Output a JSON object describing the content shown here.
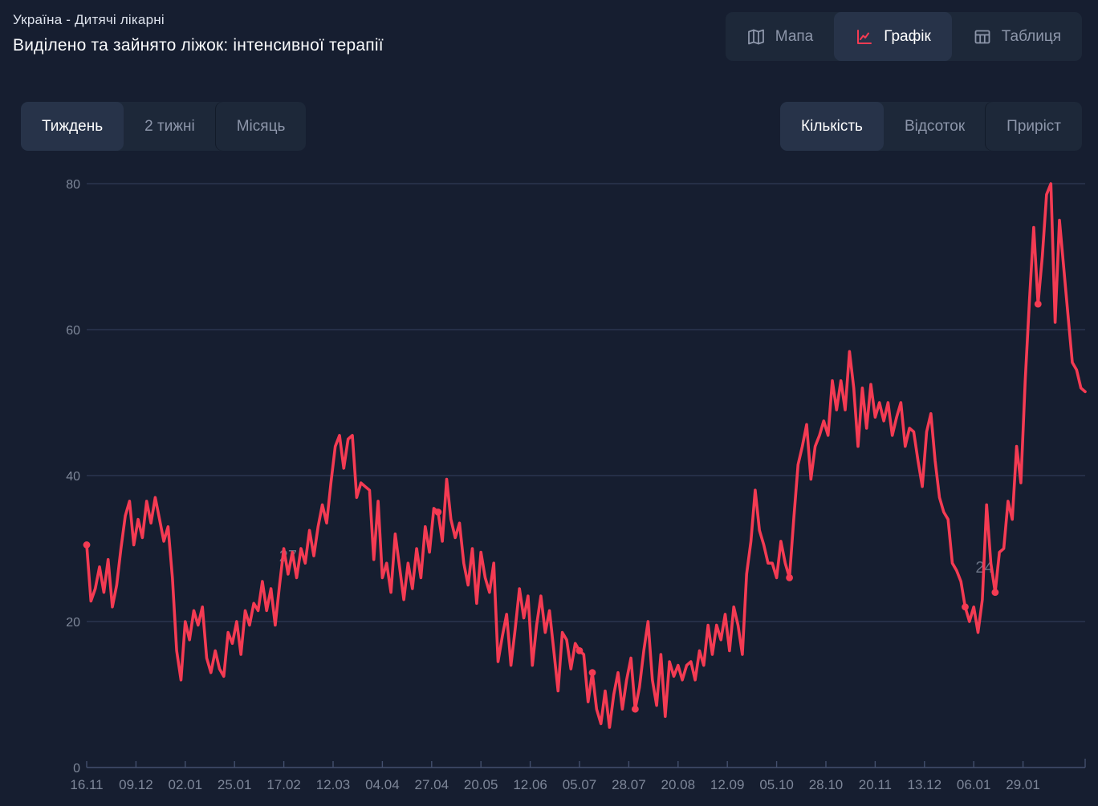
{
  "header": {
    "subtitle": "Україна - Дитячі лікарні",
    "title": "Виділено та зайнято ліжок: інтенсивної терапії"
  },
  "view_switcher": {
    "items": [
      {
        "label": "Мапа",
        "icon": "map-icon",
        "selected": false
      },
      {
        "label": "Графік",
        "icon": "line-chart-icon",
        "selected": true
      },
      {
        "label": "Таблиця",
        "icon": "table-icon",
        "selected": false
      }
    ]
  },
  "period_switcher": {
    "items": [
      {
        "label": "Тиждень",
        "selected": true
      },
      {
        "label": "2 тижні",
        "selected": false
      },
      {
        "label": "Місяць",
        "selected": false
      }
    ]
  },
  "metric_switcher": {
    "items": [
      {
        "label": "Кількість",
        "selected": true
      },
      {
        "label": "Відсоток",
        "selected": false
      },
      {
        "label": "Приріст",
        "selected": false
      }
    ]
  },
  "colors": {
    "background": "#161e30",
    "panel": "#1d2839",
    "panel_selected": "#273349",
    "text_primary": "#ffffff",
    "text_muted": "#8d96aa",
    "accent_red": "#f43b53",
    "grid_line": "#2f3a55",
    "axis_line": "#434f6d",
    "tick_label": "#7e8799"
  },
  "chart_data": {
    "type": "line",
    "title": "Виділено та зайнято ліжок: інтенсивної терапії",
    "legend": "none",
    "grid": "horizontal",
    "ylim": [
      0,
      80
    ],
    "y_ticks": [
      0,
      20,
      40,
      60,
      80
    ],
    "x_tick_labels": [
      "16.11",
      "09.12",
      "02.01",
      "25.01",
      "17.02",
      "12.03",
      "04.04",
      "27.04",
      "20.05",
      "12.06",
      "05.07",
      "28.07",
      "20.08",
      "12.09",
      "05.10",
      "28.10",
      "20.11",
      "13.12",
      "06.01",
      "29.01"
    ],
    "x_tick_day_step": 23,
    "sample_day_step": 2,
    "series": [
      {
        "name": "Виділено та зайнято ліжок: інтенсивної терапії",
        "color": "#f43b53",
        "values": [
          30.5,
          22.8,
          24.5,
          27.5,
          24,
          28.5,
          22,
          25,
          30,
          34.5,
          36.5,
          30.5,
          34,
          31.5,
          36.5,
          33.5,
          37,
          34,
          31,
          33,
          26,
          16,
          12,
          20,
          17.5,
          21.5,
          19.5,
          22,
          15,
          13,
          16,
          13.5,
          12.5,
          18.5,
          17,
          20,
          15.5,
          21.5,
          19.5,
          22.5,
          21.5,
          25.5,
          21.5,
          24.5,
          19.5,
          25,
          30,
          26.5,
          29.5,
          26,
          30,
          28,
          32.5,
          29,
          33,
          36,
          33.5,
          39,
          44,
          45.5,
          41,
          45,
          45.5,
          37,
          39,
          38.5,
          38,
          28.5,
          36.5,
          26,
          28,
          24,
          32,
          27.5,
          23,
          28,
          24.5,
          30,
          26,
          33,
          29.5,
          35.5,
          35,
          31,
          39.5,
          34,
          31.5,
          33.5,
          28,
          25,
          30,
          22.5,
          29.5,
          26,
          24,
          28,
          14.5,
          18,
          21,
          14,
          19,
          24.5,
          20.5,
          23.5,
          14,
          19.5,
          23.5,
          18.5,
          21.5,
          16,
          10.5,
          18.5,
          17.5,
          13.5,
          17,
          16,
          15.5,
          9,
          13,
          8,
          6,
          10.5,
          5.5,
          10,
          13,
          8,
          12,
          15,
          8,
          11,
          16,
          20,
          12,
          8.5,
          15.5,
          7,
          14.5,
          12.5,
          14,
          12,
          14,
          14.5,
          12,
          16,
          14,
          19.5,
          15.5,
          19.5,
          17.5,
          21,
          16,
          22,
          19.5,
          15.5,
          26.5,
          31,
          38,
          32.5,
          30.5,
          28,
          28,
          26,
          31,
          28,
          26,
          34,
          41.5,
          44,
          47,
          39.5,
          44,
          45.5,
          47.5,
          45.5,
          53,
          49,
          53,
          49,
          57,
          52,
          44,
          52,
          46.5,
          52.5,
          48,
          50,
          47.5,
          50,
          45.5,
          48,
          50,
          44,
          46.5,
          46,
          42,
          38.5,
          46,
          48.5,
          42,
          37,
          35,
          34,
          28,
          27,
          25.5,
          22,
          20,
          22,
          18.5,
          23,
          36,
          28,
          24,
          29.5,
          30,
          36.5,
          34,
          44,
          39,
          53,
          64,
          74,
          63.5,
          70,
          78.5,
          80,
          61,
          75,
          68.5,
          62,
          55.5,
          54.5,
          52,
          51.5
        ]
      }
    ],
    "marker_point_indexes": [
      0,
      82,
      115,
      118,
      128,
      164,
      205,
      212,
      222
    ],
    "point_labels": [
      {
        "text": "27",
        "x_day": 94,
        "value": 29
      },
      {
        "text": "24",
        "x_day": 419,
        "value": 27.5
      }
    ]
  }
}
